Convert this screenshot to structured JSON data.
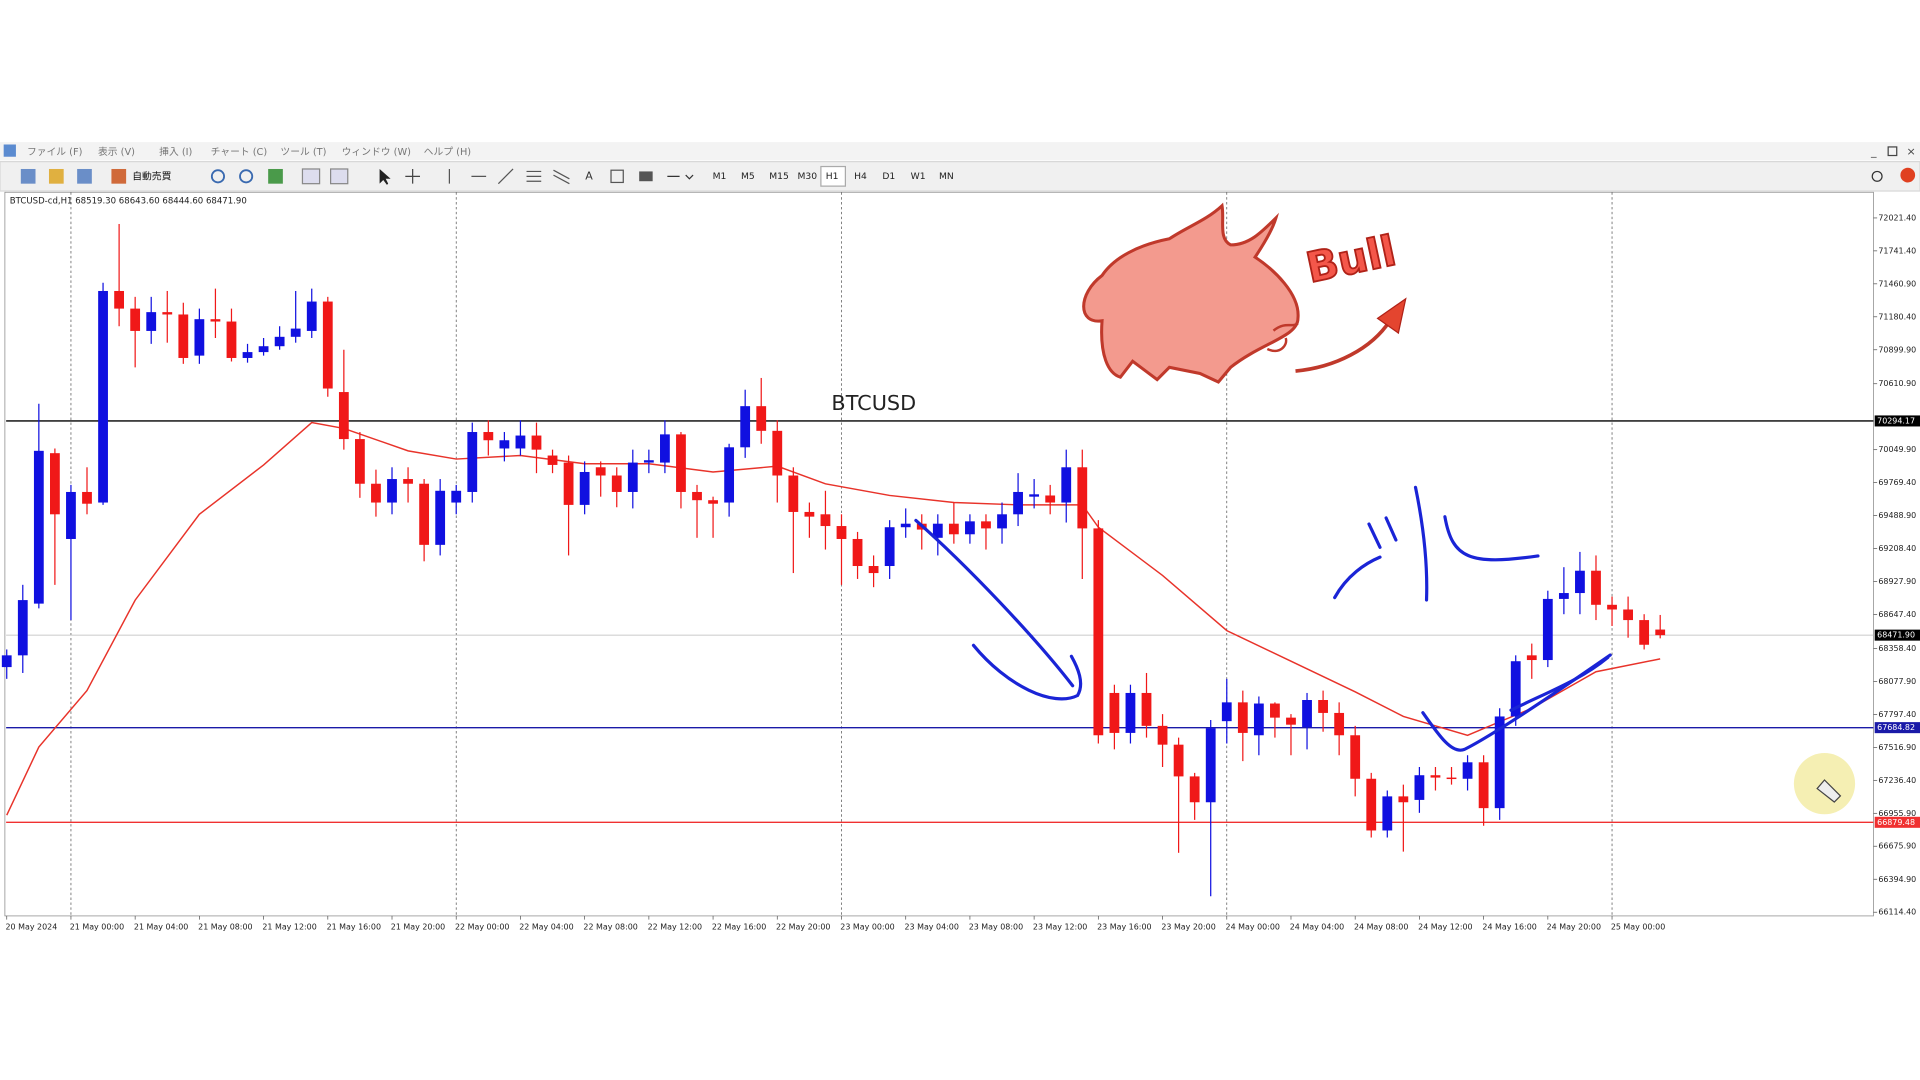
{
  "menu": [
    "ファイル (F)",
    "表示 (V)",
    "挿入 (I)",
    "チャート (C)",
    "ツール (T)",
    "ウィンドウ (W)",
    "ヘルプ (H)"
  ],
  "toolbar": {
    "autotrade": "自動売買",
    "timeframes": [
      "M1",
      "M5",
      "M15",
      "M30",
      "H1",
      "H4",
      "D1",
      "W1",
      "MN"
    ]
  },
  "chart_data": {
    "type": "candlestick",
    "title": "BTCUSD-cd,H1  68519.30 68643.60 68444.60 68471.90",
    "annotation": "BTCUSD",
    "sticker_text": "Bull",
    "up_color": "#1010e0",
    "down_color": "#f01818",
    "grid": true,
    "categories": [
      "20 May 2024",
      null,
      null,
      null,
      "21 May 00:00",
      null,
      null,
      null,
      "21 May 04:00",
      null,
      null,
      null,
      "21 May 08:00",
      null,
      null,
      null,
      "21 May 12:00",
      null,
      null,
      null,
      "21 May 16:00",
      null,
      null,
      null,
      "21 May 20:00",
      null,
      null,
      null,
      "22 May 00:00",
      null,
      null,
      null,
      "22 May 04:00",
      null,
      null,
      null,
      "22 May 08:00",
      null,
      null,
      null,
      "22 May 12:00",
      null,
      null,
      null,
      "22 May 16:00",
      null,
      null,
      null,
      "22 May 20:00",
      null,
      null,
      null,
      "23 May 00:00",
      null,
      null,
      null,
      "23 May 04:00",
      null,
      null,
      null,
      "23 May 08:00",
      null,
      null,
      null,
      "23 May 12:00",
      null,
      null,
      null,
      "23 May 16:00",
      null,
      null,
      null,
      "23 May 20:00",
      null,
      null,
      null,
      "24 May 00:00",
      null,
      null,
      null,
      "24 May 04:00",
      null,
      null,
      null,
      "24 May 08:00",
      null,
      null,
      null,
      "24 May 12:00",
      null,
      null,
      null,
      "24 May 16:00",
      null,
      null,
      null,
      "24 May 20:00",
      null,
      null,
      null,
      "25 May 00:00",
      null,
      null,
      null
    ],
    "open": [
      68200,
      68300,
      68740,
      70020,
      69290,
      69690,
      69600,
      71400,
      71250,
      71060,
      71220,
      71200,
      70850,
      71160,
      71140,
      70830,
      70880,
      70930,
      71010,
      71060,
      71310,
      70540,
      70140,
      69760,
      69600,
      69800,
      69760,
      69240,
      69600,
      69690,
      70200,
      70060,
      70060,
      70170,
      70000,
      69940,
      69580,
      69900,
      69830,
      69690,
      69940,
      69940,
      70180,
      69690,
      69620,
      69600,
      70070,
      70420,
      70210,
      69830,
      69520,
      69500,
      69400,
      69290,
      69060,
      69060,
      69390,
      69420,
      69300,
      69420,
      69330,
      69440,
      69380,
      69500,
      69650,
      69660,
      69600,
      69900,
      69380,
      67980,
      67640,
      67980,
      67700,
      67540,
      67270,
      67050,
      67740,
      67900,
      67620,
      67890,
      67770,
      67690,
      67920,
      67810,
      67620,
      67250,
      66810,
      67100,
      67070,
      67280,
      67260,
      67250,
      67390,
      67000,
      67780,
      68300,
      68260,
      68780,
      68830,
      69020,
      68730,
      68690,
      68600,
      68519.3
    ],
    "high": [
      68350,
      68900,
      70440,
      70060,
      69750,
      69900,
      71470,
      71970,
      71350,
      71350,
      71400,
      71300,
      71250,
      71420,
      71250,
      70950,
      71000,
      71100,
      71400,
      71420,
      71350,
      70900,
      70200,
      69880,
      69900,
      69900,
      69800,
      69800,
      69750,
      70280,
      70300,
      70200,
      70300,
      70280,
      70050,
      70000,
      69950,
      69950,
      69900,
      70050,
      70050,
      70300,
      70200,
      69750,
      69650,
      70100,
      70560,
      70660,
      70300,
      69900,
      69600,
      69700,
      69500,
      69350,
      69150,
      69450,
      69550,
      69500,
      69500,
      69600,
      69500,
      69500,
      69600,
      69850,
      69800,
      69750,
      70050,
      70050,
      69450,
      68050,
      68050,
      68150,
      67800,
      67600,
      67300,
      67750,
      68100,
      68000,
      67950,
      67900,
      67800,
      67980,
      68000,
      67900,
      67700,
      67300,
      67150,
      67200,
      67350,
      67350,
      67350,
      67450,
      67450,
      67850,
      68300,
      68400,
      68850,
      69050,
      69180,
      69150,
      68800,
      68800,
      68650,
      68643.6
    ],
    "low": [
      68100,
      68150,
      68700,
      68900,
      68600,
      69500,
      69580,
      71100,
      70750,
      70950,
      70960,
      70780,
      70780,
      71000,
      70800,
      70790,
      70850,
      70900,
      70960,
      71000,
      70500,
      70050,
      69640,
      69480,
      69500,
      69600,
      69100,
      69150,
      69500,
      69600,
      70000,
      69950,
      70000,
      69850,
      69850,
      69150,
      69500,
      69650,
      69560,
      69550,
      69850,
      69850,
      69550,
      69300,
      69300,
      69480,
      69980,
      70100,
      69600,
      69000,
      69300,
      69200,
      68900,
      68950,
      68880,
      68950,
      69300,
      69200,
      69150,
      69250,
      69250,
      69200,
      69250,
      69400,
      69550,
      69500,
      69430,
      68950,
      67550,
      67500,
      67550,
      67600,
      67350,
      66620,
      66900,
      66250,
      67550,
      67400,
      67450,
      67600,
      67450,
      67500,
      67650,
      67450,
      67100,
      66750,
      66750,
      66630,
      66960,
      67150,
      67200,
      67150,
      66850,
      66900,
      67700,
      68100,
      68200,
      68650,
      68650,
      68600,
      68550,
      68450,
      68350,
      68444.6
    ],
    "close": [
      68300,
      68770,
      70040,
      69500,
      69690,
      69590,
      71400,
      71250,
      71060,
      71220,
      71200,
      70830,
      71160,
      71140,
      70830,
      70880,
      70930,
      71010,
      71080,
      71310,
      70570,
      70140,
      69760,
      69600,
      69800,
      69760,
      69240,
      69700,
      69700,
      70200,
      70130,
      70130,
      70170,
      70050,
      69920,
      69580,
      69860,
      69830,
      69690,
      69940,
      69960,
      70180,
      69690,
      69620,
      69590,
      70070,
      70420,
      70210,
      69830,
      69520,
      69480,
      69400,
      69290,
      69060,
      69000,
      69390,
      69420,
      69370,
      69420,
      69330,
      69440,
      69380,
      69500,
      69690,
      69670,
      69600,
      69900,
      69380,
      67620,
      67640,
      67980,
      67700,
      67540,
      67270,
      67050,
      67680,
      67900,
      67640,
      67890,
      67770,
      67710,
      67920,
      67810,
      67620,
      67250,
      66810,
      67100,
      67050,
      67280,
      67260,
      67250,
      67390,
      67000,
      67780,
      68250,
      68260,
      68780,
      68830,
      69020,
      68730,
      68690,
      68600,
      68390,
      68471.9
    ],
    "ma": {
      "color": "#e8332a",
      "x": [
        0,
        2,
        5,
        8,
        12,
        16,
        19,
        21,
        25,
        28,
        32,
        36,
        40,
        44,
        48,
        51,
        55,
        59,
        63,
        67,
        68,
        72,
        76,
        80,
        84,
        87,
        91,
        95,
        99,
        103
      ],
      "values": [
        66940,
        67520,
        68000,
        68770,
        69500,
        69920,
        70280,
        70230,
        70040,
        69970,
        70000,
        69930,
        69930,
        69860,
        69910,
        69760,
        69660,
        69600,
        69580,
        69580,
        69390,
        68980,
        68510,
        68250,
        67990,
        67780,
        67620,
        67850,
        68160,
        68270
      ]
    },
    "levels": [
      {
        "value": 70294.17,
        "label": "70294.17",
        "color": "#000000"
      },
      {
        "value": 68471.9,
        "label": "68471.90",
        "color": "#b8b8b8"
      },
      {
        "value": 67684.82,
        "label": "67684.82",
        "color": "#1a1aa8"
      },
      {
        "value": 66879.48,
        "label": "66879.48",
        "color": "#f03030"
      }
    ],
    "ylim": [
      66083,
      72240
    ],
    "yticks": [
      {
        "value": 72021.4,
        "label": "72021.40"
      },
      {
        "value": 71741.4,
        "label": "71741.40"
      },
      {
        "value": 71460.9,
        "label": "71460.90"
      },
      {
        "value": 71180.4,
        "label": "71180.40"
      },
      {
        "value": 70899.9,
        "label": "70899.90"
      },
      {
        "value": 70610.9,
        "label": "70610.90"
      },
      {
        "value": 70049.9,
        "label": "70049.90"
      },
      {
        "value": 69769.4,
        "label": "69769.40"
      },
      {
        "value": 69488.9,
        "label": "69488.90"
      },
      {
        "value": 69208.4,
        "label": "69208.40"
      },
      {
        "value": 68927.9,
        "label": "68927.90"
      },
      {
        "value": 68647.4,
        "label": "68647.40"
      },
      {
        "value": 68358.4,
        "label": "68358.40"
      },
      {
        "value": 68077.9,
        "label": "68077.90"
      },
      {
        "value": 67797.4,
        "label": "67797.40"
      },
      {
        "value": 67516.9,
        "label": "67516.90"
      },
      {
        "value": 67236.4,
        "label": "67236.40"
      },
      {
        "value": 66955.9,
        "label": "66955.90"
      },
      {
        "value": 66675.9,
        "label": "66675.90"
      },
      {
        "value": 66394.9,
        "label": "66394.90"
      },
      {
        "value": 66114.4,
        "label": "66114.40"
      }
    ]
  }
}
